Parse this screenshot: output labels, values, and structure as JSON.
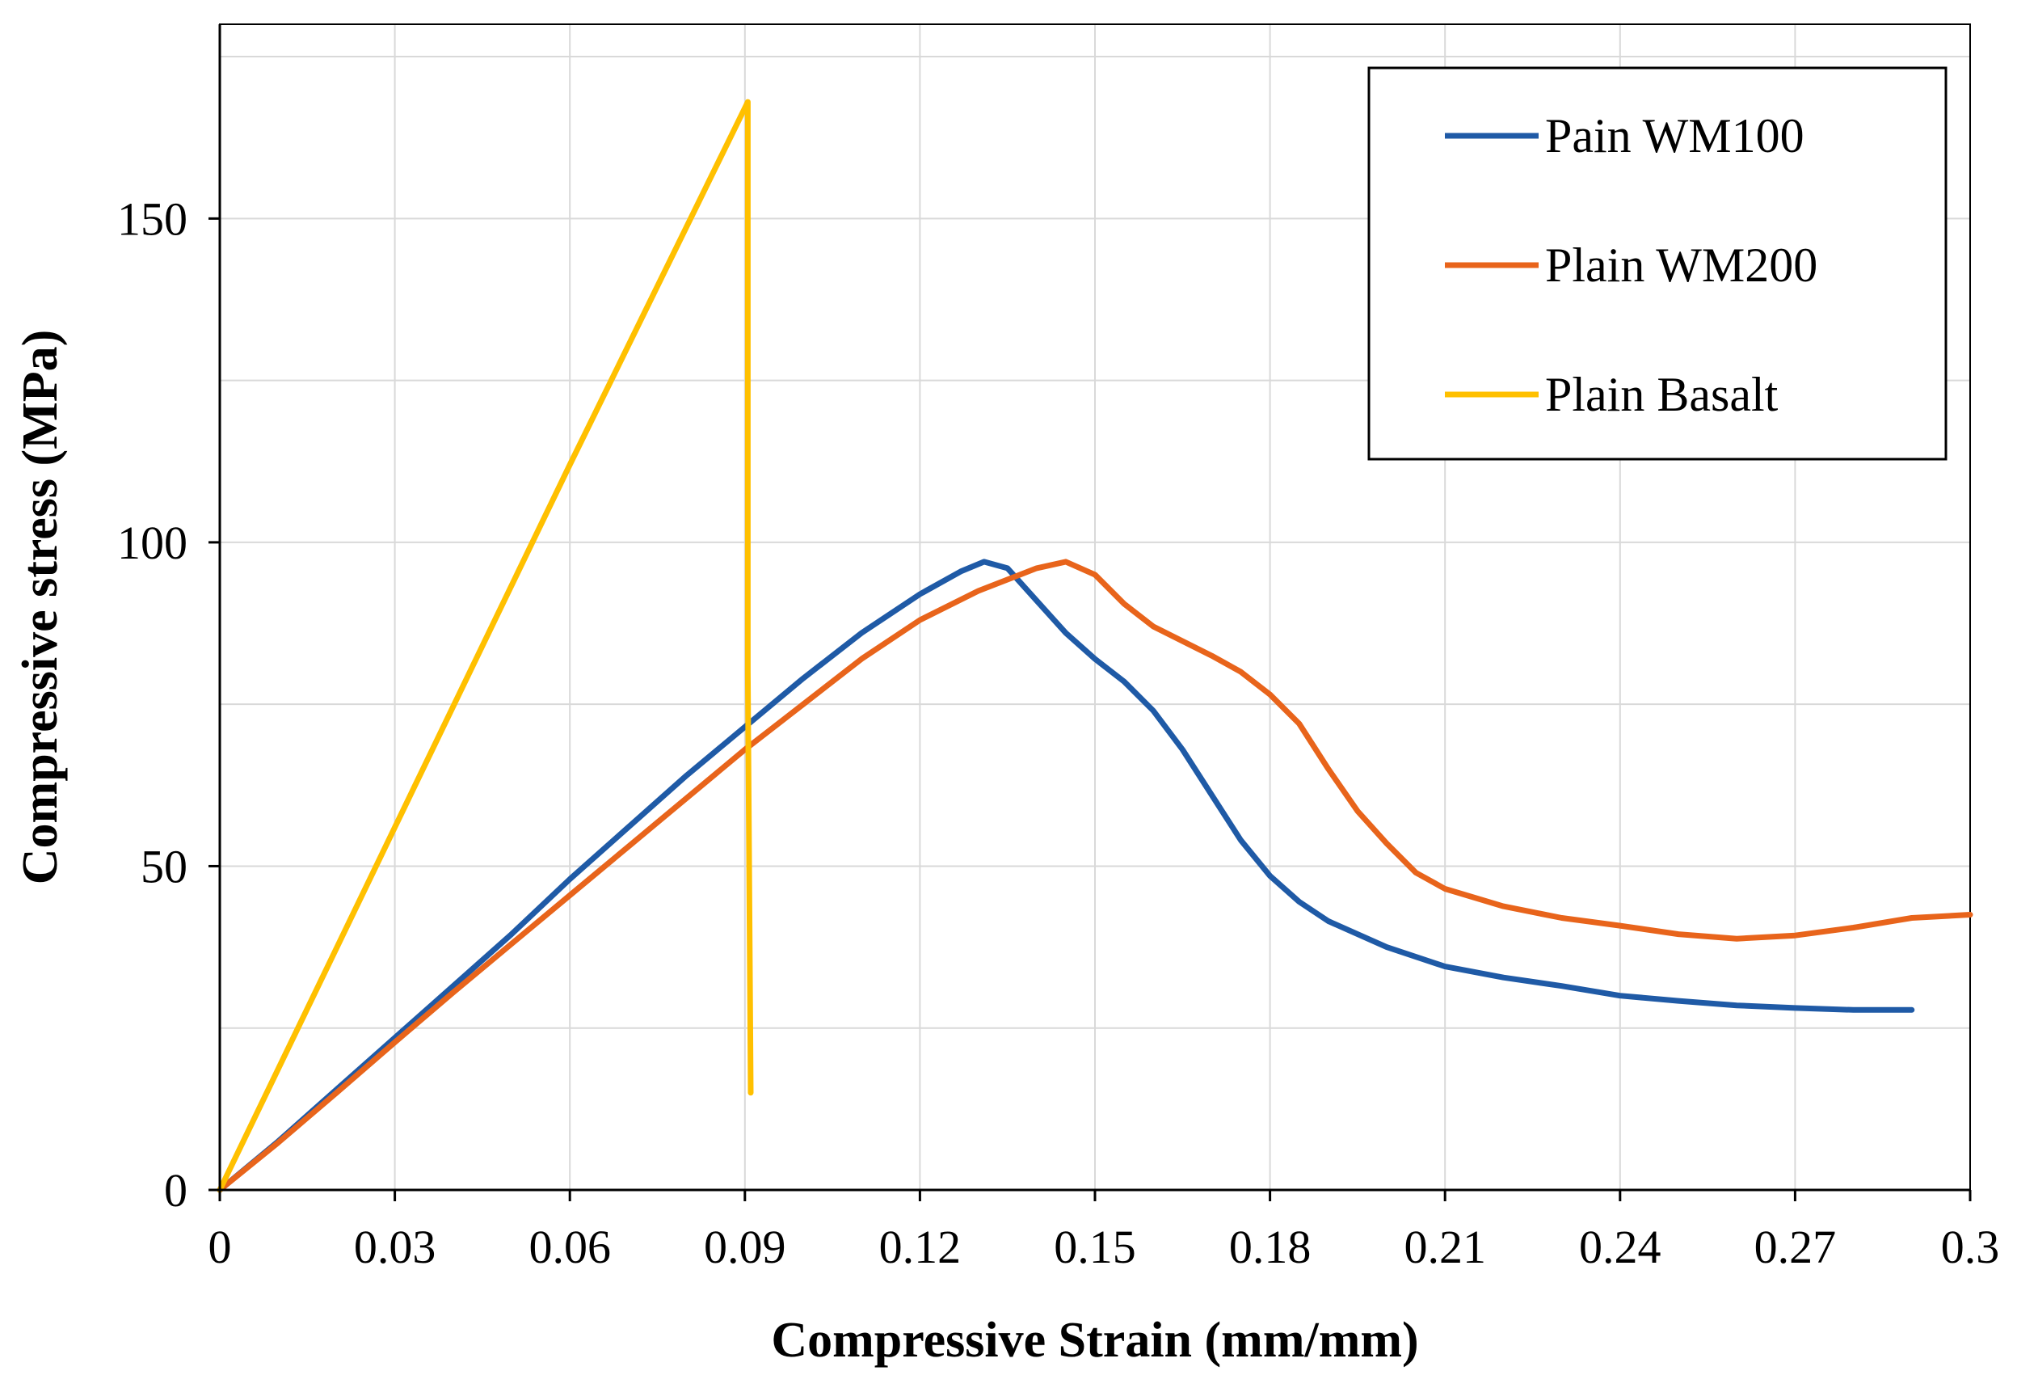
{
  "chart_data": {
    "type": "line",
    "title": "",
    "xlabel": "Compressive Strain (mm/mm)",
    "ylabel": "Compressive stress (MPa)",
    "xlim": [
      0,
      0.3
    ],
    "ylim": [
      0,
      180
    ],
    "x_ticks": [
      0,
      0.03,
      0.06,
      0.09,
      0.12,
      0.15,
      0.18,
      0.21,
      0.24,
      0.27,
      0.3
    ],
    "x_tick_labels": [
      "0",
      "0.03",
      "0.06",
      "0.09",
      "0.12",
      "0.15",
      "0.18",
      "0.21",
      "0.24",
      "0.27",
      "0.3"
    ],
    "y_ticks": [
      0,
      50,
      100,
      150
    ],
    "y_tick_labels": [
      "0",
      "50",
      "100",
      "150"
    ],
    "y_minor_grid": [
      25,
      75,
      125,
      175
    ],
    "grid": true,
    "legend_position": "top-right",
    "series": [
      {
        "name": "Pain WM100",
        "color": "#1f5aa6",
        "points": [
          [
            0,
            0
          ],
          [
            0.01,
            7.5
          ],
          [
            0.02,
            15.5
          ],
          [
            0.03,
            23.5
          ],
          [
            0.04,
            31.5
          ],
          [
            0.05,
            39.5
          ],
          [
            0.06,
            48
          ],
          [
            0.07,
            56
          ],
          [
            0.08,
            64
          ],
          [
            0.09,
            71.5
          ],
          [
            0.1,
            79
          ],
          [
            0.11,
            86
          ],
          [
            0.12,
            92
          ],
          [
            0.127,
            95.5
          ],
          [
            0.131,
            97
          ],
          [
            0.135,
            96
          ],
          [
            0.14,
            91
          ],
          [
            0.145,
            86
          ],
          [
            0.15,
            82
          ],
          [
            0.155,
            78.5
          ],
          [
            0.16,
            74
          ],
          [
            0.165,
            68
          ],
          [
            0.17,
            61
          ],
          [
            0.175,
            54
          ],
          [
            0.18,
            48.5
          ],
          [
            0.185,
            44.5
          ],
          [
            0.19,
            41.5
          ],
          [
            0.2,
            37.5
          ],
          [
            0.21,
            34.5
          ],
          [
            0.22,
            32.8
          ],
          [
            0.23,
            31.5
          ],
          [
            0.24,
            30
          ],
          [
            0.25,
            29.2
          ],
          [
            0.26,
            28.5
          ],
          [
            0.27,
            28.1
          ],
          [
            0.28,
            27.8
          ],
          [
            0.29,
            27.8
          ]
        ]
      },
      {
        "name": "Plain WM200",
        "color": "#e8641b",
        "points": [
          [
            0,
            0
          ],
          [
            0.01,
            7.3
          ],
          [
            0.02,
            15
          ],
          [
            0.03,
            22.8
          ],
          [
            0.04,
            30.5
          ],
          [
            0.05,
            38
          ],
          [
            0.06,
            45.5
          ],
          [
            0.07,
            53
          ],
          [
            0.08,
            60.5
          ],
          [
            0.09,
            68
          ],
          [
            0.1,
            75
          ],
          [
            0.11,
            82
          ],
          [
            0.12,
            88
          ],
          [
            0.13,
            92.5
          ],
          [
            0.14,
            96
          ],
          [
            0.145,
            97
          ],
          [
            0.15,
            95
          ],
          [
            0.155,
            90.5
          ],
          [
            0.16,
            87
          ],
          [
            0.17,
            82.5
          ],
          [
            0.175,
            80
          ],
          [
            0.18,
            76.5
          ],
          [
            0.185,
            72
          ],
          [
            0.19,
            65
          ],
          [
            0.195,
            58.5
          ],
          [
            0.2,
            53.5
          ],
          [
            0.205,
            49
          ],
          [
            0.21,
            46.5
          ],
          [
            0.22,
            43.8
          ],
          [
            0.23,
            42
          ],
          [
            0.24,
            40.8
          ],
          [
            0.25,
            39.5
          ],
          [
            0.26,
            38.8
          ],
          [
            0.27,
            39.3
          ],
          [
            0.28,
            40.5
          ],
          [
            0.29,
            42
          ],
          [
            0.3,
            42.5
          ]
        ]
      },
      {
        "name": "Plain Basalt",
        "color": "#ffc000",
        "points": [
          [
            0,
            0
          ],
          [
            0.03,
            56
          ],
          [
            0.06,
            112
          ],
          [
            0.0905,
            168
          ],
          [
            0.0905,
            80
          ],
          [
            0.091,
            15
          ]
        ]
      }
    ]
  }
}
